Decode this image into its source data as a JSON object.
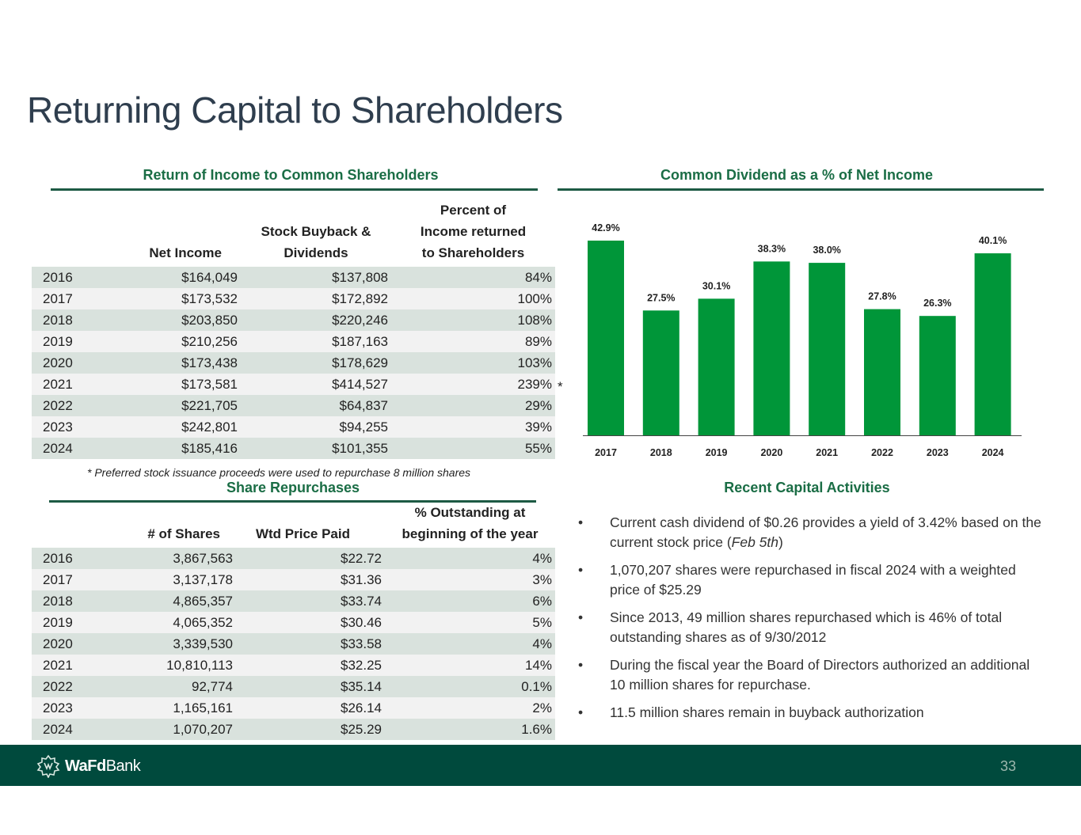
{
  "title": "Returning Capital to Shareholders",
  "return_table": {
    "heading": "Return of Income to Common Shareholders",
    "headers": [
      "Net Income",
      "Stock Buyback & Dividends",
      "Percent of Income returned to Shareholders"
    ],
    "rows": [
      [
        "2016",
        "$164,049",
        "$137,808",
        "84%"
      ],
      [
        "2017",
        "$173,532",
        "$172,892",
        "100%"
      ],
      [
        "2018",
        "$203,850",
        "$220,246",
        "108%"
      ],
      [
        "2019",
        "$210,256",
        "$187,163",
        "89%"
      ],
      [
        "2020",
        "$173,438",
        "$178,629",
        "103%"
      ],
      [
        "2021",
        "$173,581",
        "$414,527",
        "239%"
      ],
      [
        "2022",
        "$221,705",
        "$64,837",
        "29%"
      ],
      [
        "2023",
        "$242,801",
        "$94,255",
        "39%"
      ],
      [
        "2024",
        "$185,416",
        "$101,355",
        "55%"
      ]
    ],
    "asterisk": "*",
    "footnote": "* Preferred stock issuance proceeds were used to repurchase 8 million shares"
  },
  "repurchase_table": {
    "heading": "Share Repurchases",
    "headers": [
      "# of Shares",
      "Wtd Price Paid",
      "% Outstanding at beginning of the year"
    ],
    "rows": [
      [
        "2016",
        "3,867,563",
        "$22.72",
        "4%"
      ],
      [
        "2017",
        "3,137,178",
        "$31.36",
        "3%"
      ],
      [
        "2018",
        "4,865,357",
        "$33.74",
        "6%"
      ],
      [
        "2019",
        "4,065,352",
        "$30.46",
        "5%"
      ],
      [
        "2020",
        "3,339,530",
        "$33.58",
        "4%"
      ],
      [
        "2021",
        "10,810,113",
        "$32.25",
        "14%"
      ],
      [
        "2022",
        "92,774",
        "$35.14",
        "0.1%"
      ],
      [
        "2023",
        "1,165,161",
        "$26.14",
        "2%"
      ],
      [
        "2024",
        "1,070,207",
        "$25.29",
        "1.6%"
      ]
    ]
  },
  "chart_data": {
    "type": "bar",
    "title": "Common Dividend as a % of Net Income",
    "categories": [
      "2017",
      "2018",
      "2019",
      "2020",
      "2021",
      "2022",
      "2023",
      "2024"
    ],
    "values": [
      42.9,
      27.5,
      30.1,
      38.3,
      38.0,
      27.8,
      26.3,
      40.1
    ],
    "labels": [
      "42.9%",
      "27.5%",
      "30.1%",
      "38.3%",
      "38.0%",
      "27.8%",
      "26.3%",
      "40.1%"
    ],
    "ylim": [
      0,
      42.9
    ],
    "xlabel": "",
    "ylabel": "",
    "color": "#009639"
  },
  "activities": {
    "heading": "Recent Capital Activities",
    "bullet_char": "•",
    "items": [
      {
        "pre": "Current cash dividend of $0.26 provides a yield of 3.42% based on the current stock price (",
        "em": "Feb 5th",
        "post": ")"
      },
      {
        "pre": "1,070,207 shares were repurchased in fiscal 2024 with a weighted price of $25.29",
        "em": "",
        "post": ""
      },
      {
        "pre": "Since 2013, 49 million shares repurchased which is 46% of total outstanding shares as of 9/30/2012",
        "em": "",
        "post": ""
      },
      {
        "pre": "During the fiscal year the Board of Directors authorized an additional 10 million shares for repurchase.",
        "em": "",
        "post": ""
      },
      {
        "pre": "11.5 million shares remain in buyback authorization",
        "em": "",
        "post": ""
      }
    ]
  },
  "footer": {
    "logo_bold": "WaFd",
    "logo_light": "Bank",
    "page_number": "33"
  }
}
